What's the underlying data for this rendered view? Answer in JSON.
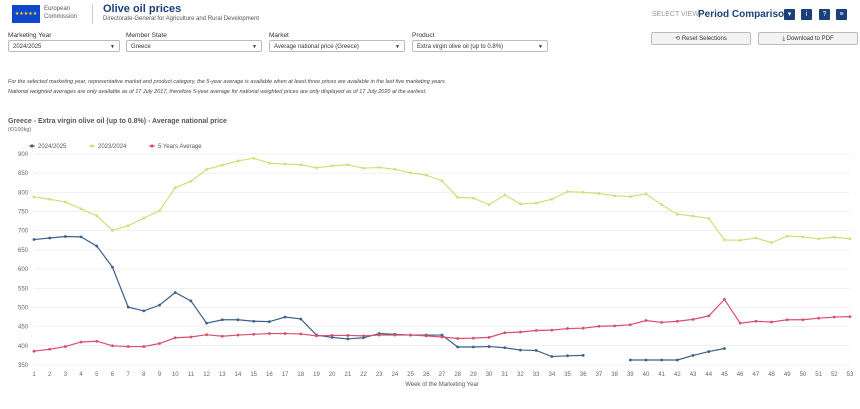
{
  "header": {
    "org_line1": "European",
    "org_line2": "Commission",
    "title": "Olive oil prices",
    "subtitle": "Directorate-General for Agriculture and Rural Development",
    "select_view_label": "SELECT VIEW:",
    "select_view_value": "Period Comparison",
    "icons": [
      "chevron-down-icon",
      "info-icon",
      "help-icon",
      "menu-icon"
    ]
  },
  "filters": [
    {
      "label": "Marketing Year",
      "value": "2024/2025"
    },
    {
      "label": "Member State",
      "value": "Greece"
    },
    {
      "label": "Market",
      "value": "Average national price (Greece)"
    },
    {
      "label": "Product",
      "value": "Extra virgin olive oil (up to 0.8%)"
    }
  ],
  "actions": {
    "reset": "Reset Selections",
    "pdf": "Download to PDF"
  },
  "info": {
    "line1": "For the selected marketing year, representative market and product category, the 5-year average is available when at least three prices are available in the last five marketing years.",
    "line2": "National weighted averages are only available as of 17 July 2017, therefore 5-year average for national weighted prices are only displayed as of 17 July 2020 at the earliest."
  },
  "chart_data": {
    "type": "line",
    "title": "Greece - Extra virgin olive oil (up to 0.8%) - Average national price",
    "ylabel": "(€/100kg)",
    "xlabel": "Week of the Marketing Year",
    "ylim": [
      350,
      900
    ],
    "yticks": [
      350,
      400,
      450,
      500,
      550,
      600,
      650,
      700,
      750,
      800,
      850,
      900
    ],
    "x": [
      1,
      2,
      3,
      4,
      5,
      6,
      7,
      8,
      9,
      10,
      11,
      12,
      13,
      14,
      15,
      16,
      17,
      18,
      19,
      20,
      21,
      22,
      23,
      24,
      25,
      26,
      27,
      28,
      29,
      30,
      31,
      32,
      33,
      34,
      35,
      36,
      37,
      38,
      39,
      40,
      41,
      42,
      43,
      44,
      45,
      46,
      47,
      48,
      49,
      50,
      51,
      52,
      53
    ],
    "series": [
      {
        "name": "2024/2025",
        "color": "#3d5f8c",
        "values": [
          677,
          681,
          685,
          684,
          660,
          605,
          501,
          491,
          506,
          539,
          517,
          459,
          468,
          468,
          464,
          463,
          475,
          470,
          428,
          422,
          418,
          421,
          432,
          430,
          428,
          428,
          428,
          397,
          397,
          398,
          395,
          389,
          388,
          372,
          374,
          375,
          null,
          null,
          363,
          363,
          363,
          363,
          375,
          385,
          393,
          null,
          null,
          null,
          null,
          null,
          null,
          null,
          null
        ]
      },
      {
        "name": "2023/2024",
        "color": "#d4dd7a",
        "values": [
          788,
          782,
          775,
          757,
          739,
          701,
          713,
          733,
          752,
          812,
          829,
          860,
          871,
          882,
          889,
          876,
          874,
          872,
          864,
          869,
          872,
          863,
          865,
          860,
          851,
          845,
          830,
          787,
          785,
          768,
          793,
          770,
          772,
          782,
          802,
          800,
          797,
          791,
          789,
          796,
          768,
          743,
          738,
          732,
          676,
          675,
          681,
          669,
          686,
          684,
          679,
          683,
          679
        ]
      },
      {
        "name": "5 Years Average",
        "color": "#d94f6b",
        "values": [
          386,
          391,
          398,
          410,
          412,
          400,
          398,
          398,
          406,
          421,
          423,
          429,
          425,
          428,
          430,
          432,
          432,
          431,
          426,
          427,
          427,
          426,
          428,
          428,
          428,
          426,
          423,
          419,
          420,
          422,
          434,
          436,
          440,
          441,
          445,
          446,
          451,
          452,
          455,
          466,
          461,
          464,
          469,
          478,
          521,
          459,
          464,
          462,
          468,
          468,
          472,
          475,
          476
        ]
      }
    ],
    "legend_position": "top-left",
    "grid": true
  }
}
